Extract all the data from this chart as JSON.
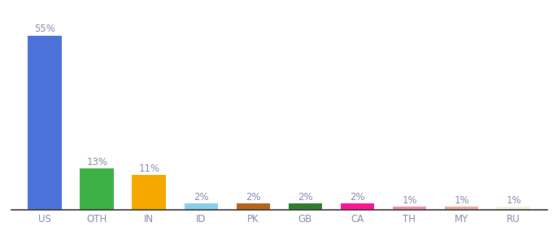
{
  "categories": [
    "US",
    "OTH",
    "IN",
    "ID",
    "PK",
    "GB",
    "CA",
    "TH",
    "MY",
    "RU"
  ],
  "values": [
    55,
    13,
    11,
    2,
    2,
    2,
    2,
    1,
    1,
    1
  ],
  "bar_colors": [
    "#4a72d8",
    "#3cb043",
    "#f5a800",
    "#87ceeb",
    "#b8621a",
    "#2e7d2e",
    "#ff1493",
    "#f48aaa",
    "#e8a898",
    "#f5f0dc"
  ],
  "ylim": [
    0,
    60
  ],
  "label_fontsize": 8.5,
  "tick_fontsize": 8.5,
  "label_color": "#8888aa",
  "tick_color": "#8888aa",
  "background_color": "#ffffff",
  "bar_width": 0.65
}
